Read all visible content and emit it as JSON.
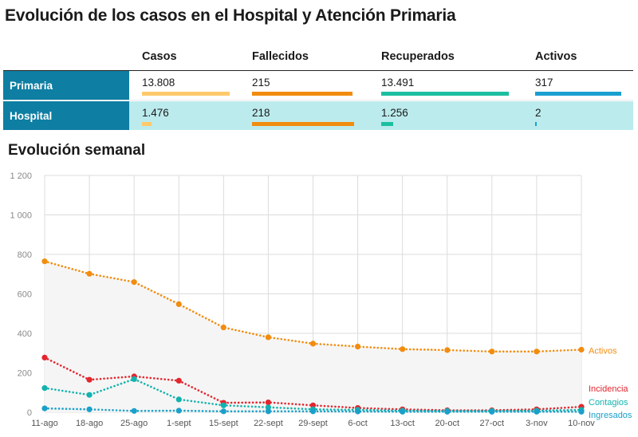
{
  "page": {
    "title": "Evolución de los casos en el Hospital y Atención Primaria",
    "subtitle": "Evolución semanal"
  },
  "table": {
    "headers": [
      "Casos",
      "Fallecidos",
      "Recuperados",
      "Activos"
    ],
    "header_blank": "",
    "rows": [
      {
        "label": "Primaria",
        "cells": [
          {
            "text": "13.808",
            "value": 13808,
            "max": 13808
          },
          {
            "text": "215",
            "value": 215,
            "max": 218
          },
          {
            "text": "13.491",
            "value": 13491,
            "max": 13491
          },
          {
            "text": "317",
            "value": 317,
            "max": 317
          }
        ]
      },
      {
        "label": "Hospital",
        "cells": [
          {
            "text": "1.476",
            "value": 1476,
            "max": 13808
          },
          {
            "text": "218",
            "value": 218,
            "max": 218
          },
          {
            "text": "1.256",
            "value": 1256,
            "max": 13491
          },
          {
            "text": "2",
            "value": 2,
            "max": 317
          }
        ]
      }
    ],
    "bar_colors": [
      "#ffc96b",
      "#f28c0f",
      "#1bbfa0",
      "#1a9fd0"
    ],
    "colors": {
      "row_label_bg": "#0e7ea3",
      "row2_bg": "#bcebed"
    }
  },
  "chart_data": {
    "type": "line",
    "categories": [
      "11-ago",
      "18-ago",
      "25-ago",
      "1-sept",
      "15-sept",
      "22-sept",
      "29-sept",
      "6-oct",
      "13-oct",
      "20-oct",
      "27-oct",
      "3-nov",
      "10-nov"
    ],
    "ylim": [
      0,
      1200
    ],
    "yticks": [
      0,
      200,
      400,
      600,
      800,
      1000,
      1200
    ],
    "ytick_labels": [
      "0",
      "200",
      "400",
      "600",
      "800",
      "1 000",
      "1 200"
    ],
    "grid": true,
    "legend": "labels at right end of each line",
    "series": [
      {
        "name": "Activos",
        "color": "#f28c0f",
        "area": true,
        "values": [
          765,
          702,
          660,
          548,
          430,
          380,
          348,
          333,
          320,
          315,
          308,
          308,
          317
        ]
      },
      {
        "name": "Incidencia",
        "color": "#e3262f",
        "area": false,
        "values": [
          277,
          165,
          182,
          160,
          48,
          50,
          35,
          22,
          15,
          10,
          10,
          15,
          28
        ]
      },
      {
        "name": "Contagios",
        "color": "#12b3ae",
        "area": false,
        "values": [
          123,
          88,
          168,
          65,
          35,
          25,
          15,
          12,
          8,
          7,
          7,
          8,
          12
        ]
      },
      {
        "name": "Ingresados",
        "color": "#1aa0c9",
        "area": false,
        "values": [
          20,
          15,
          7,
          8,
          5,
          5,
          5,
          4,
          3,
          3,
          3,
          3,
          3
        ]
      }
    ],
    "area_color": "#f5f5f5",
    "grid_color": "#dcdcdc"
  }
}
